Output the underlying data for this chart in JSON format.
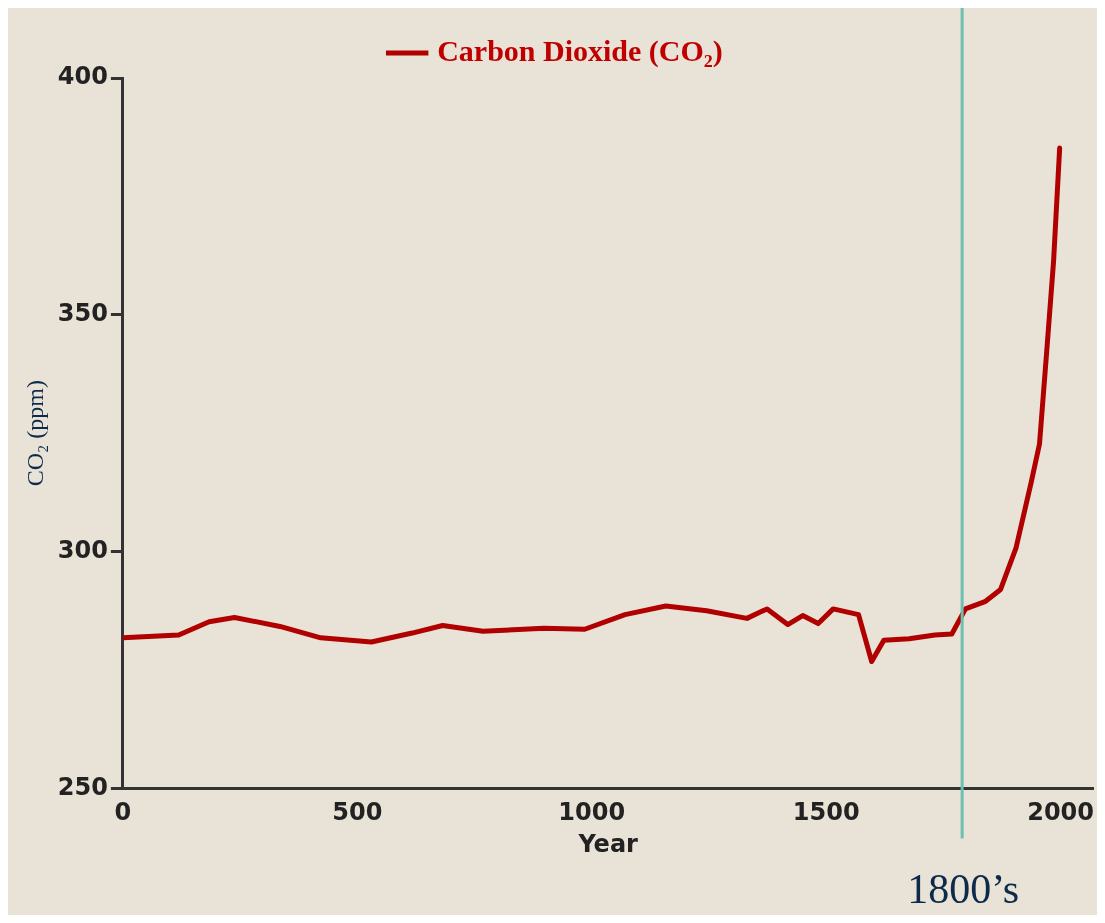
{
  "chart_data": {
    "type": "line",
    "xlabel": "Year",
    "ylabel": "CO₂ (ppm)",
    "x": [
      0,
      119,
      184,
      238,
      335,
      422,
      530,
      617,
      682,
      768,
      898,
      985,
      1071,
      1158,
      1245,
      1331,
      1374,
      1418,
      1450,
      1483,
      1515,
      1569,
      1597,
      1623,
      1677,
      1732,
      1768,
      1797,
      1840,
      1872,
      1905,
      1937,
      1955,
      1970,
      1985,
      1998
    ],
    "series": [
      {
        "name": "Carbon Dioxide (CO₂)",
        "color": "#b00000",
        "values": [
          281.8,
          282.4,
          285.2,
          286.1,
          284.2,
          281.8,
          280.9,
          282.8,
          284.4,
          283.2,
          283.8,
          283.6,
          286.7,
          288.5,
          287.5,
          285.9,
          287.9,
          284.6,
          286.5,
          284.8,
          287.9,
          286.7,
          276.8,
          281.3,
          281.6,
          282.4,
          282.6,
          287.9,
          289.5,
          292.0,
          300.8,
          314.5,
          322.7,
          341.8,
          361.3,
          385.2
        ]
      }
    ],
    "xlim": [
      0,
      2070
    ],
    "xticks": [
      0,
      500,
      1000,
      1500,
      2000
    ],
    "ylim": [
      250,
      400
    ],
    "yticks": [
      250,
      300,
      350,
      400
    ],
    "ref_lines": [
      {
        "axis": "x",
        "value": 1790,
        "label": "1800’s",
        "color": "#6dbfb0"
      }
    ],
    "legend": "top",
    "grid": false,
    "marker": "none",
    "line_style": "solid"
  }
}
